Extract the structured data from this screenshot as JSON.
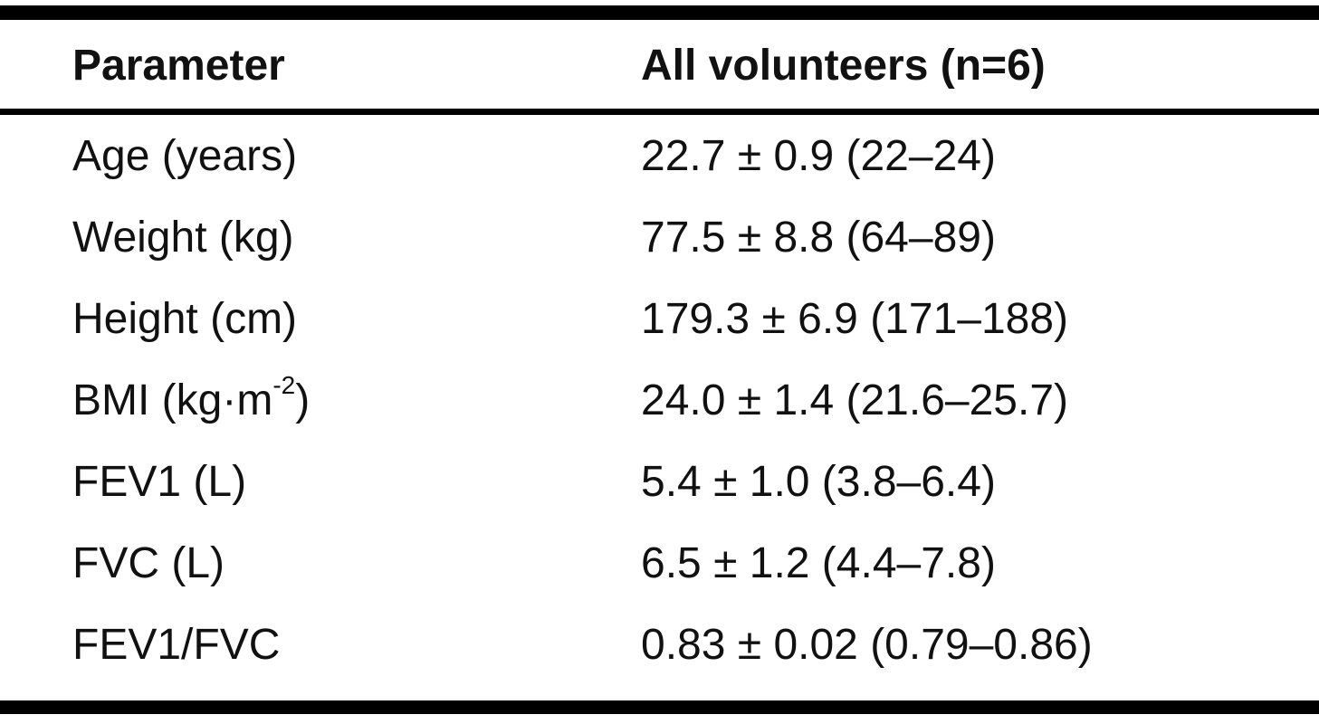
{
  "table": {
    "headers": {
      "parameter": "Parameter",
      "group": "All volunteers (n=6)"
    },
    "rows": [
      {
        "parameter": "Age (years)",
        "value": "22.7 ± 0.9 (22–24)"
      },
      {
        "parameter": "Weight (kg)",
        "value": "77.5 ± 8.8 (64–89)"
      },
      {
        "parameter": "Height (cm)",
        "value": "179.3 ± 6.9 (171–188)"
      },
      {
        "parameter_prefix": "BMI (kg·m",
        "parameter_sup": "-2",
        "parameter_suffix": ")",
        "value": "24.0 ± 1.4 (21.6–25.7)"
      },
      {
        "parameter": "FEV1 (L)",
        "value": "5.4 ± 1.0 (3.8–6.4)"
      },
      {
        "parameter": "FVC (L)",
        "value": "6.5 ± 1.2 (4.4–7.8)"
      },
      {
        "parameter": "FEV1/FVC",
        "value": "0.83 ± 0.02 (0.79–0.86)"
      }
    ]
  }
}
